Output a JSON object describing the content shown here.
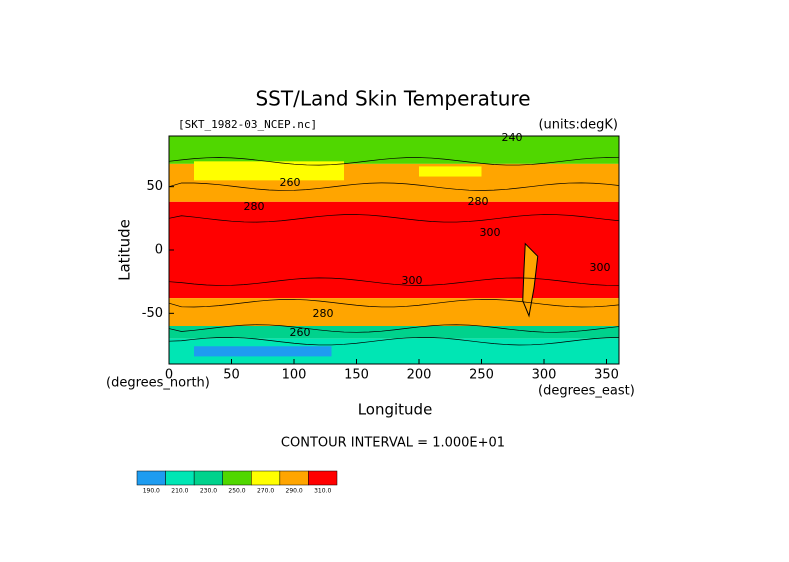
{
  "title": "SST/Land Skin Temperature",
  "file_label": "[SKT_1982-03_NCEP.nc]",
  "units_label": "(units:degK)",
  "x_axis": {
    "label": "Longitude",
    "units": "(degrees_east)",
    "lim": [
      0,
      360
    ],
    "ticks": [
      0,
      50,
      100,
      150,
      200,
      250,
      300,
      350
    ]
  },
  "y_axis": {
    "label": "Latitude",
    "units": "(degrees_north)",
    "lim": [
      -90,
      90
    ],
    "ticks": [
      -50,
      0,
      50
    ]
  },
  "contour_interval": "CONTOUR INTERVAL = 1.000E+01",
  "contour_labels": [
    "240",
    "260",
    "280",
    "280",
    "300",
    "300",
    "300",
    "280",
    "260"
  ],
  "colorbar": {
    "colors": [
      "#1e9cf0",
      "#00e6b4",
      "#00d28c",
      "#50d700",
      "#ffff00",
      "#ffa500",
      "#ff0000"
    ],
    "labels": [
      "190.0",
      "210.0",
      "230.0",
      "250.0",
      "270.0",
      "290.0",
      "310.0"
    ]
  }
}
